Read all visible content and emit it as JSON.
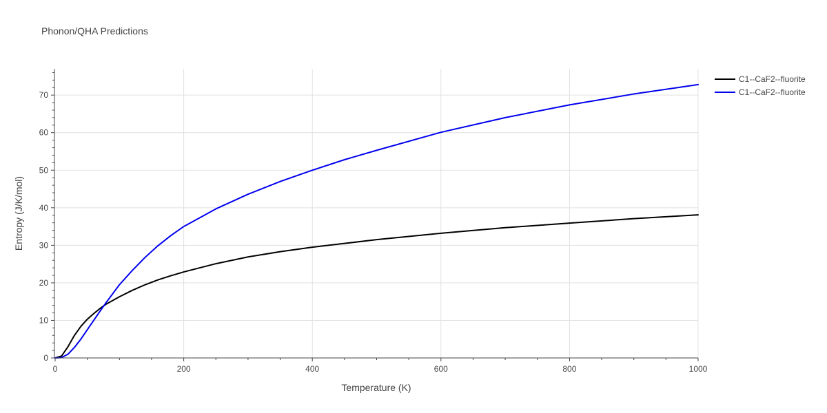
{
  "chart_data": {
    "type": "line",
    "title": "Phonon/QHA Predictions",
    "xlabel": "Temperature (K)",
    "ylabel": "Entropy (J/K/mol)",
    "xlim": [
      0,
      1000
    ],
    "ylim": [
      0,
      77
    ],
    "xticks": [
      0,
      200,
      400,
      600,
      800,
      1000
    ],
    "yticks": [
      0,
      10,
      20,
      30,
      40,
      50,
      60,
      70
    ],
    "grid": true,
    "legend_position": "top-right",
    "series": [
      {
        "name": "C1--CaF2--fluorite",
        "color": "#000000",
        "x": [
          0,
          10,
          20,
          30,
          40,
          50,
          60,
          70,
          80,
          100,
          120,
          140,
          160,
          180,
          200,
          250,
          300,
          350,
          400,
          450,
          500,
          600,
          700,
          800,
          900,
          1000
        ],
        "y": [
          0,
          0.5,
          3,
          6,
          8.4,
          10.3,
          11.8,
          13.2,
          14.4,
          16.3,
          18.0,
          19.5,
          20.8,
          21.9,
          22.9,
          25.1,
          26.9,
          28.3,
          29.5,
          30.5,
          31.5,
          33.2,
          34.7,
          35.9,
          37.1,
          38.1
        ]
      },
      {
        "name": "C1--CaF2--fluorite",
        "color": "#0000ee",
        "x": [
          0,
          10,
          20,
          30,
          40,
          50,
          60,
          70,
          80,
          100,
          120,
          140,
          160,
          180,
          200,
          250,
          300,
          350,
          400,
          450,
          500,
          600,
          700,
          800,
          900,
          1000
        ],
        "y": [
          0,
          0.1,
          1.0,
          2.8,
          5.0,
          7.5,
          10.0,
          12.5,
          14.9,
          19.5,
          23.3,
          26.8,
          29.9,
          32.6,
          35.0,
          39.7,
          43.6,
          47.0,
          50.0,
          52.8,
          55.3,
          60.1,
          64.0,
          67.4,
          70.3,
          72.8
        ]
      }
    ]
  }
}
